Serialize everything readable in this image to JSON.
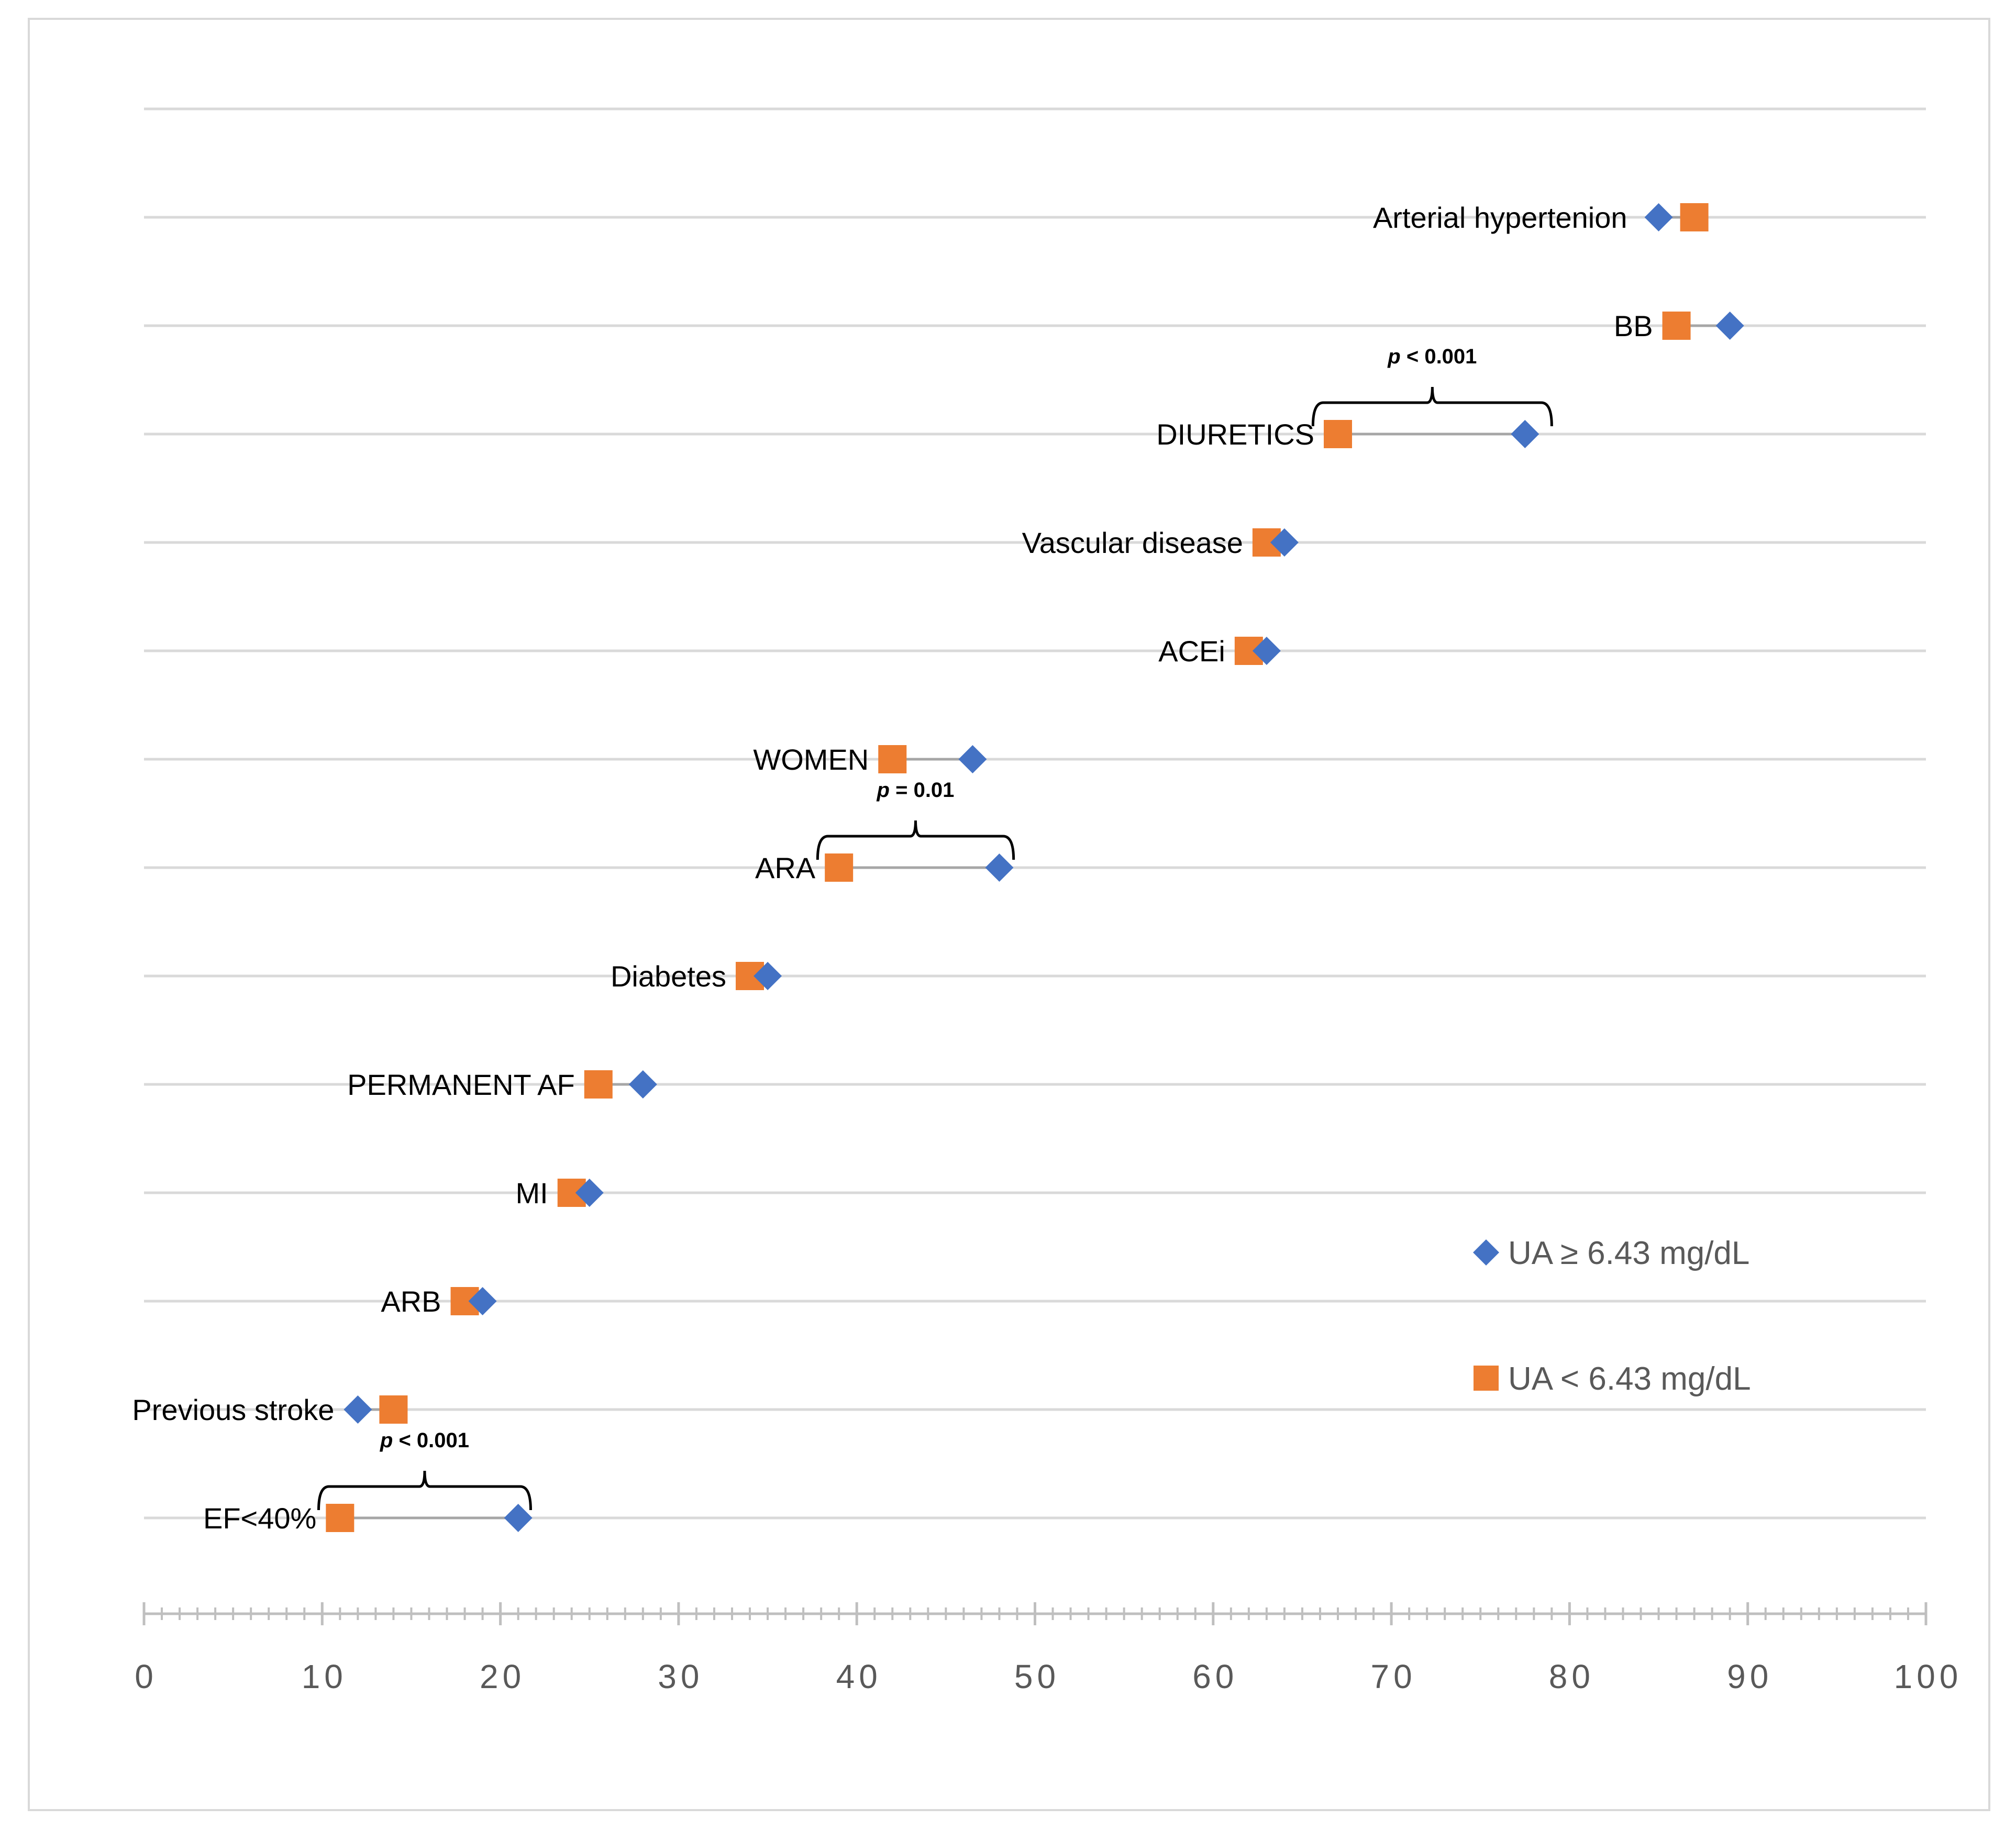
{
  "colors": {
    "ua_high": "#4472c4",
    "ua_low": "#ed7d31",
    "grid": "#d9d9d9",
    "axis": "#bfbfbf"
  },
  "chart_data": {
    "type": "scatter",
    "title": "",
    "xlabel": "",
    "ylabel": "",
    "xlim": [
      0,
      100
    ],
    "x_ticks": [
      "0",
      "10",
      "20",
      "30",
      "40",
      "50",
      "60",
      "70",
      "80",
      "90",
      "100"
    ],
    "legend_position": "bottom-right",
    "categories": [
      "Arterial hypertenion",
      "BB",
      "DIURETICS",
      "Vascular disease",
      "ACEi",
      "WOMEN",
      "ARA",
      "Diabetes",
      "PERMANENT AF",
      "MI",
      "ARB",
      "Previous stroke",
      "EF<40%"
    ],
    "series": [
      {
        "name": "UA ≥ 6.43 mg/dL",
        "marker": "diamond",
        "values": [
          85.0,
          89.0,
          77.5,
          64.0,
          63.0,
          46.5,
          48.0,
          35.0,
          28.0,
          25.0,
          19.0,
          12.0,
          21.0
        ]
      },
      {
        "name": "UA < 6.43 mg/dL",
        "marker": "square",
        "values": [
          87.0,
          86.0,
          67.0,
          63.0,
          62.0,
          42.0,
          39.0,
          34.0,
          25.5,
          24.0,
          18.0,
          14.0,
          11.0
        ]
      }
    ],
    "annotations": [
      {
        "category": "DIURETICS",
        "text_italic": "p",
        "text_rest": " < 0.001",
        "from": 65.6,
        "to": 79.0
      },
      {
        "category": "ARA",
        "text_italic": "p",
        "text_rest": " = 0.01",
        "from": 37.8,
        "to": 48.8
      },
      {
        "category": "EF<40%",
        "text_italic": "p",
        "text_rest": " < 0.001",
        "from": 9.8,
        "to": 21.7
      }
    ]
  }
}
